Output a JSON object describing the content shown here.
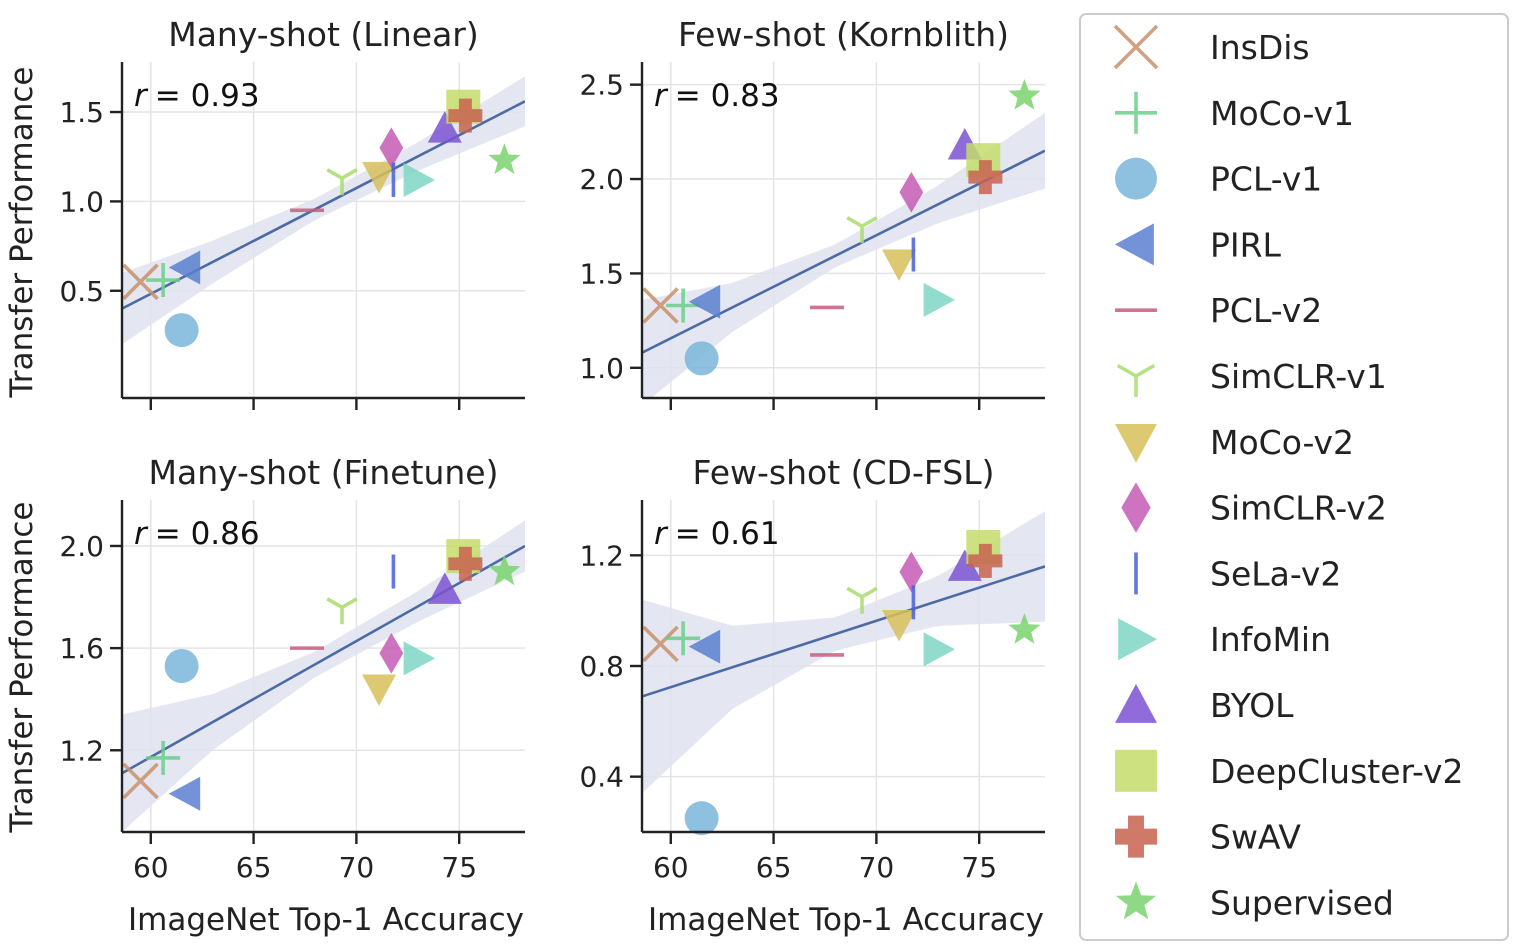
{
  "legend": {
    "entries": [
      {
        "name": "InsDis",
        "color": "#c8916a",
        "marker": "x-icon"
      },
      {
        "name": "MoCo-v1",
        "color": "#6ccf8a",
        "marker": "plus-icon"
      },
      {
        "name": "PCL-v1",
        "color": "#79b6d9",
        "marker": "circle-icon"
      },
      {
        "name": "PIRL",
        "color": "#5b7fd0",
        "marker": "triangle-left-icon"
      },
      {
        "name": "PCL-v2",
        "color": "#c85c7e",
        "marker": "hline-icon"
      },
      {
        "name": "SimCLR-v1",
        "color": "#a8dd6e",
        "marker": "tri-down-icon"
      },
      {
        "name": "MoCo-v2",
        "color": "#d8bf5a",
        "marker": "triangle-down-icon"
      },
      {
        "name": "SimCLR-v2",
        "color": "#c45ab5",
        "marker": "diamond-icon"
      },
      {
        "name": "SeLa-v2",
        "color": "#4a5fd6",
        "marker": "vline-icon"
      },
      {
        "name": "InfoMin",
        "color": "#7ed6c4",
        "marker": "triangle-right-icon"
      },
      {
        "name": "BYOL",
        "color": "#7b52d2",
        "marker": "triangle-up-icon"
      },
      {
        "name": "DeepCluster-v2",
        "color": "#c4dc6a",
        "marker": "square-icon"
      },
      {
        "name": "SwAV",
        "color": "#c8624f",
        "marker": "plus-thick-icon"
      },
      {
        "name": "Supervised",
        "color": "#7ad36e",
        "marker": "star-icon"
      }
    ]
  },
  "chart_data": [
    {
      "type": "scatter",
      "title": "Many-shot (Linear)",
      "xlabel": "",
      "ylabel": "Transfer Performance",
      "annotation": "r = 0.93",
      "r_prefix": "r",
      "r_value": "= 0.93",
      "xlim": [
        58.6,
        78.2
      ],
      "ylim": [
        -0.1,
        1.78
      ],
      "xticks": [
        60,
        65,
        70,
        75
      ],
      "xticklabels_shown": false,
      "yticks": [
        0.5,
        1.0,
        1.5
      ],
      "yticklabels": [
        "0.5",
        "1.0",
        "1.5"
      ],
      "grid": true,
      "fit": {
        "x": [
          58.6,
          78.2
        ],
        "y": [
          0.4,
          1.56
        ]
      },
      "band_halfwidth": {
        "x": [
          58.6,
          63,
          68,
          73,
          78.2
        ],
        "w": [
          0.2,
          0.12,
          0.06,
          0.08,
          0.14
        ]
      },
      "points": [
        {
          "series": "InsDis",
          "x": 59.5,
          "y": 0.55
        },
        {
          "series": "MoCo-v1",
          "x": 60.6,
          "y": 0.56
        },
        {
          "series": "PCL-v1",
          "x": 61.5,
          "y": 0.28
        },
        {
          "series": "PIRL",
          "x": 61.7,
          "y": 0.63
        },
        {
          "series": "PCL-v2",
          "x": 67.6,
          "y": 0.95
        },
        {
          "series": "SimCLR-v1",
          "x": 69.3,
          "y": 1.13
        },
        {
          "series": "MoCo-v2",
          "x": 71.1,
          "y": 1.14
        },
        {
          "series": "SimCLR-v2",
          "x": 71.7,
          "y": 1.3
        },
        {
          "series": "SeLa-v2",
          "x": 71.8,
          "y": 1.12
        },
        {
          "series": "InfoMin",
          "x": 73.0,
          "y": 1.12
        },
        {
          "series": "BYOL",
          "x": 74.3,
          "y": 1.41
        },
        {
          "series": "DeepCluster-v2",
          "x": 75.2,
          "y": 1.53
        },
        {
          "series": "SwAV",
          "x": 75.3,
          "y": 1.48
        },
        {
          "series": "Supervised",
          "x": 77.2,
          "y": 1.23
        }
      ]
    },
    {
      "type": "scatter",
      "title": "Few-shot (Kornblith)",
      "xlabel": "",
      "ylabel": "",
      "annotation": "r = 0.83",
      "r_prefix": "r",
      "r_value": "= 0.83",
      "xlim": [
        58.6,
        78.2
      ],
      "ylim": [
        0.84,
        2.62
      ],
      "xticks": [
        60,
        65,
        70,
        75
      ],
      "xticklabels_shown": false,
      "yticks": [
        1.0,
        1.5,
        2.0,
        2.5
      ],
      "yticklabels": [
        "1.0",
        "1.5",
        "2.0",
        "2.5"
      ],
      "grid": true,
      "fit": {
        "x": [
          58.6,
          78.2
        ],
        "y": [
          1.08,
          2.15
        ]
      },
      "band_halfwidth": {
        "x": [
          58.6,
          63,
          68,
          73,
          78.2
        ],
        "w": [
          0.28,
          0.13,
          0.06,
          0.1,
          0.2
        ]
      },
      "points": [
        {
          "series": "InsDis",
          "x": 59.5,
          "y": 1.33
        },
        {
          "series": "MoCo-v1",
          "x": 60.6,
          "y": 1.33
        },
        {
          "series": "PCL-v1",
          "x": 61.5,
          "y": 1.05
        },
        {
          "series": "PIRL",
          "x": 61.7,
          "y": 1.35
        },
        {
          "series": "PCL-v2",
          "x": 67.6,
          "y": 1.32
        },
        {
          "series": "SimCLR-v1",
          "x": 69.3,
          "y": 1.75
        },
        {
          "series": "MoCo-v2",
          "x": 71.1,
          "y": 1.55
        },
        {
          "series": "SimCLR-v2",
          "x": 71.7,
          "y": 1.93
        },
        {
          "series": "SeLa-v2",
          "x": 71.8,
          "y": 1.6
        },
        {
          "series": "InfoMin",
          "x": 73.0,
          "y": 1.36
        },
        {
          "series": "BYOL",
          "x": 74.3,
          "y": 2.18
        },
        {
          "series": "DeepCluster-v2",
          "x": 75.2,
          "y": 2.1
        },
        {
          "series": "SwAV",
          "x": 75.3,
          "y": 2.01
        },
        {
          "series": "Supervised",
          "x": 77.2,
          "y": 2.44
        }
      ]
    },
    {
      "type": "scatter",
      "title": "Many-shot (Finetune)",
      "xlabel": "ImageNet Top-1 Accuracy",
      "ylabel": "Transfer Performance",
      "annotation": "r = 0.86",
      "r_prefix": "r",
      "r_value": "= 0.86",
      "xlim": [
        58.6,
        78.2
      ],
      "ylim": [
        0.88,
        2.18
      ],
      "xticks": [
        60,
        65,
        70,
        75
      ],
      "xticklabels": [
        "60",
        "65",
        "70",
        "75"
      ],
      "xticklabels_shown": true,
      "yticks": [
        1.2,
        1.6,
        2.0
      ],
      "yticklabels": [
        "1.2",
        "1.6",
        "2.0"
      ],
      "grid": true,
      "fit": {
        "x": [
          58.6,
          78.2
        ],
        "y": [
          1.11,
          2.0
        ]
      },
      "band_halfwidth": {
        "x": [
          58.6,
          63,
          68,
          73,
          78.2
        ],
        "w": [
          0.23,
          0.11,
          0.05,
          0.06,
          0.1
        ]
      },
      "points": [
        {
          "series": "InsDis",
          "x": 59.5,
          "y": 1.08
        },
        {
          "series": "MoCo-v1",
          "x": 60.6,
          "y": 1.17
        },
        {
          "series": "PCL-v1",
          "x": 61.5,
          "y": 1.53
        },
        {
          "series": "PIRL",
          "x": 61.7,
          "y": 1.03
        },
        {
          "series": "PCL-v2",
          "x": 67.6,
          "y": 1.6
        },
        {
          "series": "SimCLR-v1",
          "x": 69.3,
          "y": 1.76
        },
        {
          "series": "MoCo-v2",
          "x": 71.1,
          "y": 1.44
        },
        {
          "series": "SimCLR-v2",
          "x": 71.7,
          "y": 1.58
        },
        {
          "series": "SeLa-v2",
          "x": 71.8,
          "y": 1.9
        },
        {
          "series": "InfoMin",
          "x": 73.0,
          "y": 1.56
        },
        {
          "series": "BYOL",
          "x": 74.3,
          "y": 1.83
        },
        {
          "series": "DeepCluster-v2",
          "x": 75.2,
          "y": 1.96
        },
        {
          "series": "SwAV",
          "x": 75.3,
          "y": 1.93
        },
        {
          "series": "Supervised",
          "x": 77.2,
          "y": 1.9
        }
      ]
    },
    {
      "type": "scatter",
      "title": "Few-shot (CD-FSL)",
      "xlabel": "ImageNet Top-1 Accuracy",
      "ylabel": "",
      "annotation": "r = 0.61",
      "r_prefix": "r",
      "r_value": "= 0.61",
      "xlim": [
        58.6,
        78.2
      ],
      "ylim": [
        0.2,
        1.4
      ],
      "xticks": [
        60,
        65,
        70,
        75
      ],
      "xticklabels": [
        "60",
        "65",
        "70",
        "75"
      ],
      "xticklabels_shown": true,
      "yticks": [
        0.4,
        0.8,
        1.2
      ],
      "yticklabels": [
        "0.4",
        "0.8",
        "1.2"
      ],
      "grid": true,
      "fit": {
        "x": [
          58.6,
          78.2
        ],
        "y": [
          0.69,
          1.16
        ]
      },
      "band_halfwidth": {
        "x": [
          58.6,
          63,
          68,
          73,
          78.2
        ],
        "w": [
          0.35,
          0.15,
          0.06,
          0.09,
          0.2
        ]
      },
      "points": [
        {
          "series": "InsDis",
          "x": 59.5,
          "y": 0.88
        },
        {
          "series": "MoCo-v1",
          "x": 60.6,
          "y": 0.9
        },
        {
          "series": "PCL-v1",
          "x": 61.5,
          "y": 0.25
        },
        {
          "series": "PIRL",
          "x": 61.7,
          "y": 0.87
        },
        {
          "series": "PCL-v2",
          "x": 67.6,
          "y": 0.84
        },
        {
          "series": "SimCLR-v1",
          "x": 69.3,
          "y": 1.05
        },
        {
          "series": "MoCo-v2",
          "x": 71.1,
          "y": 0.95
        },
        {
          "series": "SimCLR-v2",
          "x": 71.7,
          "y": 1.14
        },
        {
          "series": "SeLa-v2",
          "x": 71.8,
          "y": 1.03
        },
        {
          "series": "InfoMin",
          "x": 73.0,
          "y": 0.86
        },
        {
          "series": "BYOL",
          "x": 74.3,
          "y": 1.16
        },
        {
          "series": "DeepCluster-v2",
          "x": 75.2,
          "y": 1.23
        },
        {
          "series": "SwAV",
          "x": 75.3,
          "y": 1.18
        },
        {
          "series": "Supervised",
          "x": 77.2,
          "y": 0.93
        }
      ]
    }
  ]
}
